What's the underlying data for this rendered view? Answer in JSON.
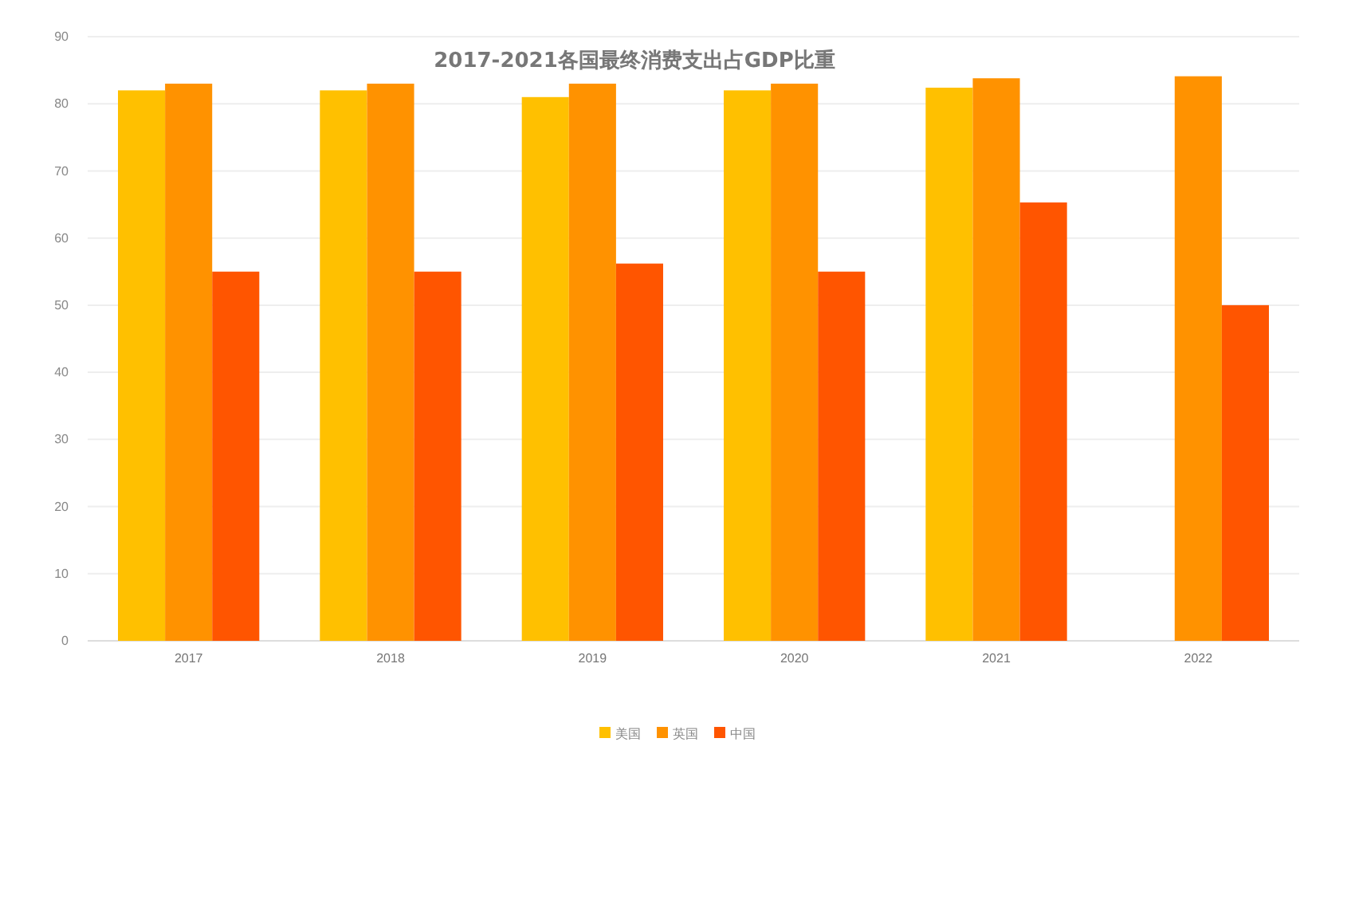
{
  "chart_data": {
    "type": "bar",
    "title": "2017-2021各国最终消费支出占GDP比重",
    "categories": [
      "2017",
      "2018",
      "2019",
      "2020",
      "2021",
      "2022"
    ],
    "series": [
      {
        "name": "美国",
        "color": "#ffc000",
        "values": [
          82,
          82,
          81,
          82,
          82.4,
          null
        ]
      },
      {
        "name": "英国",
        "color": "#ff9200",
        "values": [
          83,
          83,
          83,
          83,
          83.8,
          84.1
        ]
      },
      {
        "name": "中国",
        "color": "#ff5500",
        "values": [
          55,
          55,
          56.2,
          55,
          65.3,
          50
        ]
      }
    ],
    "ylim": [
      0,
      90
    ],
    "yticks": [
      0,
      10,
      20,
      30,
      40,
      50,
      60,
      70,
      80,
      90
    ],
    "grid": "y",
    "legend": "bottom"
  }
}
